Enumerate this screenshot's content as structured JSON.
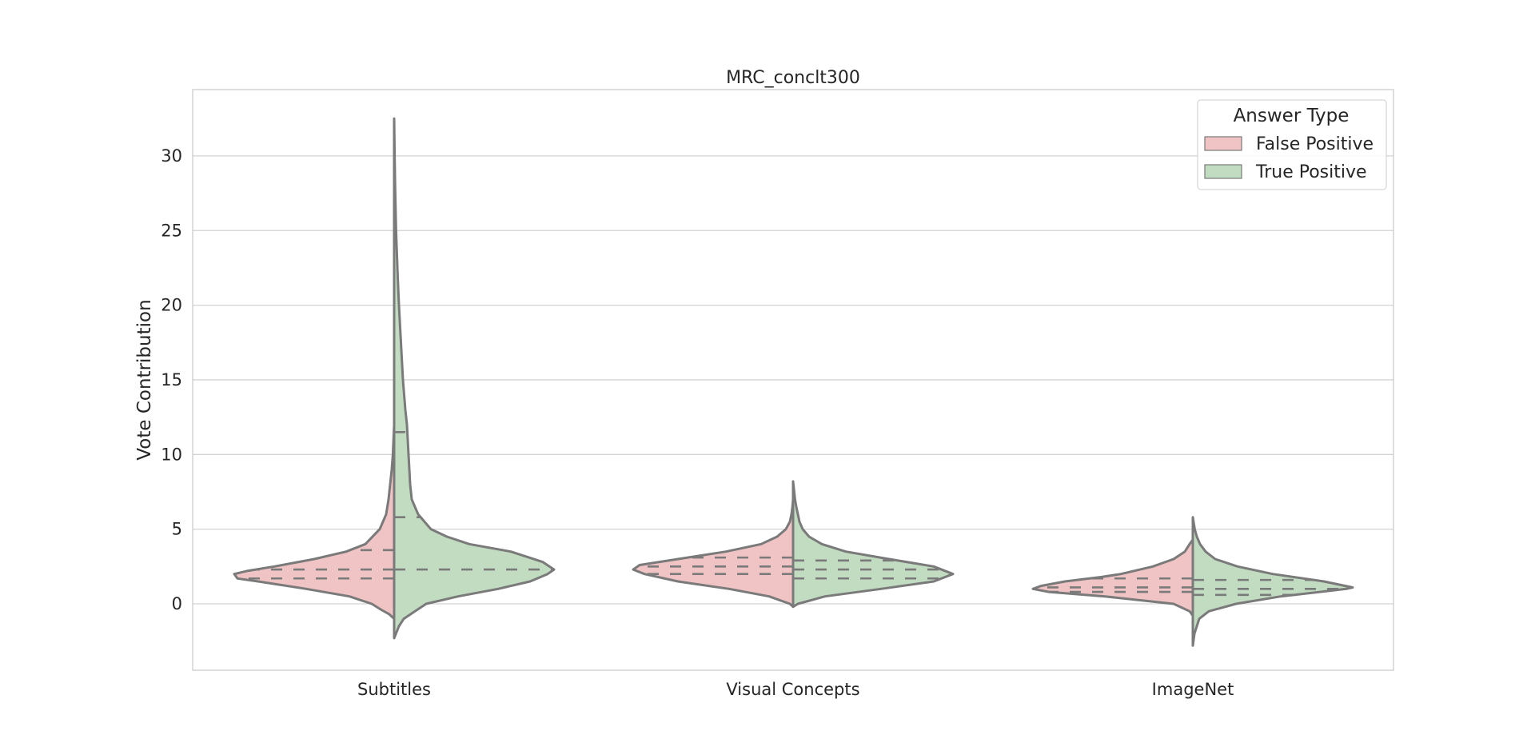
{
  "chart_data": {
    "type": "violin",
    "title": "MRC_conclt300",
    "xlabel": "",
    "ylabel": "Vote Contribution",
    "ylim": [
      -4.5,
      34.5
    ],
    "yticks": [
      0,
      5,
      10,
      15,
      20,
      25,
      30
    ],
    "ytick_labels": [
      "0",
      "5",
      "10",
      "15",
      "20",
      "25",
      "30"
    ],
    "grid": true,
    "split": true,
    "inner": "quartile",
    "categories": [
      "Subtitles",
      "Visual Concepts",
      "ImageNet"
    ],
    "legend": {
      "title": "Answer Type",
      "placement": "top-right",
      "entries": [
        "False Positive",
        "True Positive"
      ]
    },
    "colors": {
      "False Positive": "#f0c4c4",
      "True Positive": "#c1dcc1",
      "outline": "#7a7a7a",
      "grid": "#d3d3d3",
      "frame": "#cccccc"
    },
    "series": [
      {
        "name": "False Positive",
        "violins": [
          {
            "category": "Subtitles",
            "quartiles": [
              1.7,
              2.3,
              3.6
            ],
            "profile": [
              [
                -1.0,
                0.0
              ],
              [
                -0.7,
                0.03
              ],
              [
                -0.4,
                0.08
              ],
              [
                0.0,
                0.14
              ],
              [
                0.5,
                0.28
              ],
              [
                1.0,
                0.55
              ],
              [
                1.5,
                0.85
              ],
              [
                1.7,
                0.98
              ],
              [
                2.0,
                1.0
              ],
              [
                2.2,
                0.92
              ],
              [
                2.5,
                0.75
              ],
              [
                3.0,
                0.5
              ],
              [
                3.5,
                0.3
              ],
              [
                4.0,
                0.18
              ],
              [
                5.0,
                0.09
              ],
              [
                6.0,
                0.05
              ],
              [
                7.0,
                0.035
              ],
              [
                8.0,
                0.025
              ],
              [
                9.0,
                0.015
              ],
              [
                10.0,
                0.008
              ],
              [
                11.0,
                0.004
              ],
              [
                12.0,
                0.0
              ]
            ]
          },
          {
            "category": "Visual Concepts",
            "quartiles": [
              2.0,
              2.5,
              3.1
            ],
            "profile": [
              [
                -0.2,
                0.0
              ],
              [
                0.0,
                0.02
              ],
              [
                0.5,
                0.15
              ],
              [
                1.0,
                0.4
              ],
              [
                1.5,
                0.72
              ],
              [
                2.0,
                0.93
              ],
              [
                2.3,
                1.0
              ],
              [
                2.6,
                0.96
              ],
              [
                3.0,
                0.72
              ],
              [
                3.5,
                0.42
              ],
              [
                4.0,
                0.2
              ],
              [
                4.5,
                0.1
              ],
              [
                5.0,
                0.045
              ],
              [
                5.5,
                0.02
              ],
              [
                6.0,
                0.01
              ],
              [
                6.5,
                0.004
              ],
              [
                7.0,
                0.0
              ]
            ]
          },
          {
            "category": "ImageNet",
            "quartiles": [
              0.8,
              1.1,
              1.7
            ],
            "profile": [
              [
                -0.8,
                0.0
              ],
              [
                -0.5,
                0.02
              ],
              [
                0.0,
                0.12
              ],
              [
                0.5,
                0.55
              ],
              [
                0.8,
                0.9
              ],
              [
                1.0,
                1.0
              ],
              [
                1.2,
                0.95
              ],
              [
                1.5,
                0.8
              ],
              [
                1.8,
                0.57
              ],
              [
                2.0,
                0.45
              ],
              [
                2.5,
                0.25
              ],
              [
                3.0,
                0.12
              ],
              [
                3.5,
                0.05
              ],
              [
                4.0,
                0.02
              ],
              [
                4.3,
                0.0
              ]
            ]
          }
        ]
      },
      {
        "name": "True Positive",
        "violins": [
          {
            "category": "Subtitles",
            "quartiles": [
              2.3,
              5.8,
              11.5
            ],
            "profile": [
              [
                -2.3,
                0.0
              ],
              [
                -1.5,
                0.03
              ],
              [
                -1.0,
                0.06
              ],
              [
                0.0,
                0.2
              ],
              [
                0.5,
                0.4
              ],
              [
                1.0,
                0.65
              ],
              [
                1.5,
                0.85
              ],
              [
                2.0,
                0.96
              ],
              [
                2.3,
                1.0
              ],
              [
                2.8,
                0.93
              ],
              [
                3.5,
                0.73
              ],
              [
                4.0,
                0.47
              ],
              [
                4.5,
                0.33
              ],
              [
                5.0,
                0.23
              ],
              [
                6.0,
                0.15
              ],
              [
                7.0,
                0.11
              ],
              [
                8.0,
                0.1
              ],
              [
                10.0,
                0.09
              ],
              [
                12.0,
                0.08
              ],
              [
                13.0,
                0.07
              ],
              [
                15.0,
                0.055
              ],
              [
                16.0,
                0.05
              ],
              [
                18.0,
                0.04
              ],
              [
                20.0,
                0.03
              ],
              [
                22.0,
                0.022
              ],
              [
                25.0,
                0.012
              ],
              [
                28.0,
                0.006
              ],
              [
                30.0,
                0.003
              ],
              [
                32.5,
                0.0
              ]
            ]
          },
          {
            "category": "Visual Concepts",
            "quartiles": [
              1.7,
              2.3,
              2.9
            ],
            "profile": [
              [
                -0.2,
                0.0
              ],
              [
                0.0,
                0.03
              ],
              [
                0.5,
                0.2
              ],
              [
                1.0,
                0.55
              ],
              [
                1.5,
                0.88
              ],
              [
                2.0,
                1.0
              ],
              [
                2.5,
                0.88
              ],
              [
                3.0,
                0.6
              ],
              [
                3.5,
                0.33
              ],
              [
                4.0,
                0.18
              ],
              [
                4.5,
                0.1
              ],
              [
                5.0,
                0.06
              ],
              [
                5.5,
                0.04
              ],
              [
                6.0,
                0.03
              ],
              [
                6.5,
                0.02
              ],
              [
                7.0,
                0.012
              ],
              [
                8.2,
                0.0
              ]
            ]
          },
          {
            "category": "ImageNet",
            "quartiles": [
              0.6,
              1.0,
              1.6
            ],
            "profile": [
              [
                -2.8,
                0.0
              ],
              [
                -2.0,
                0.01
              ],
              [
                -1.0,
                0.04
              ],
              [
                -0.5,
                0.1
              ],
              [
                0.0,
                0.27
              ],
              [
                0.5,
                0.55
              ],
              [
                1.0,
                0.96
              ],
              [
                1.1,
                1.0
              ],
              [
                1.5,
                0.82
              ],
              [
                2.0,
                0.5
              ],
              [
                2.5,
                0.28
              ],
              [
                3.0,
                0.14
              ],
              [
                3.5,
                0.08
              ],
              [
                4.0,
                0.045
              ],
              [
                4.5,
                0.025
              ],
              [
                5.0,
                0.012
              ],
              [
                5.8,
                0.0
              ]
            ]
          }
        ]
      }
    ]
  }
}
